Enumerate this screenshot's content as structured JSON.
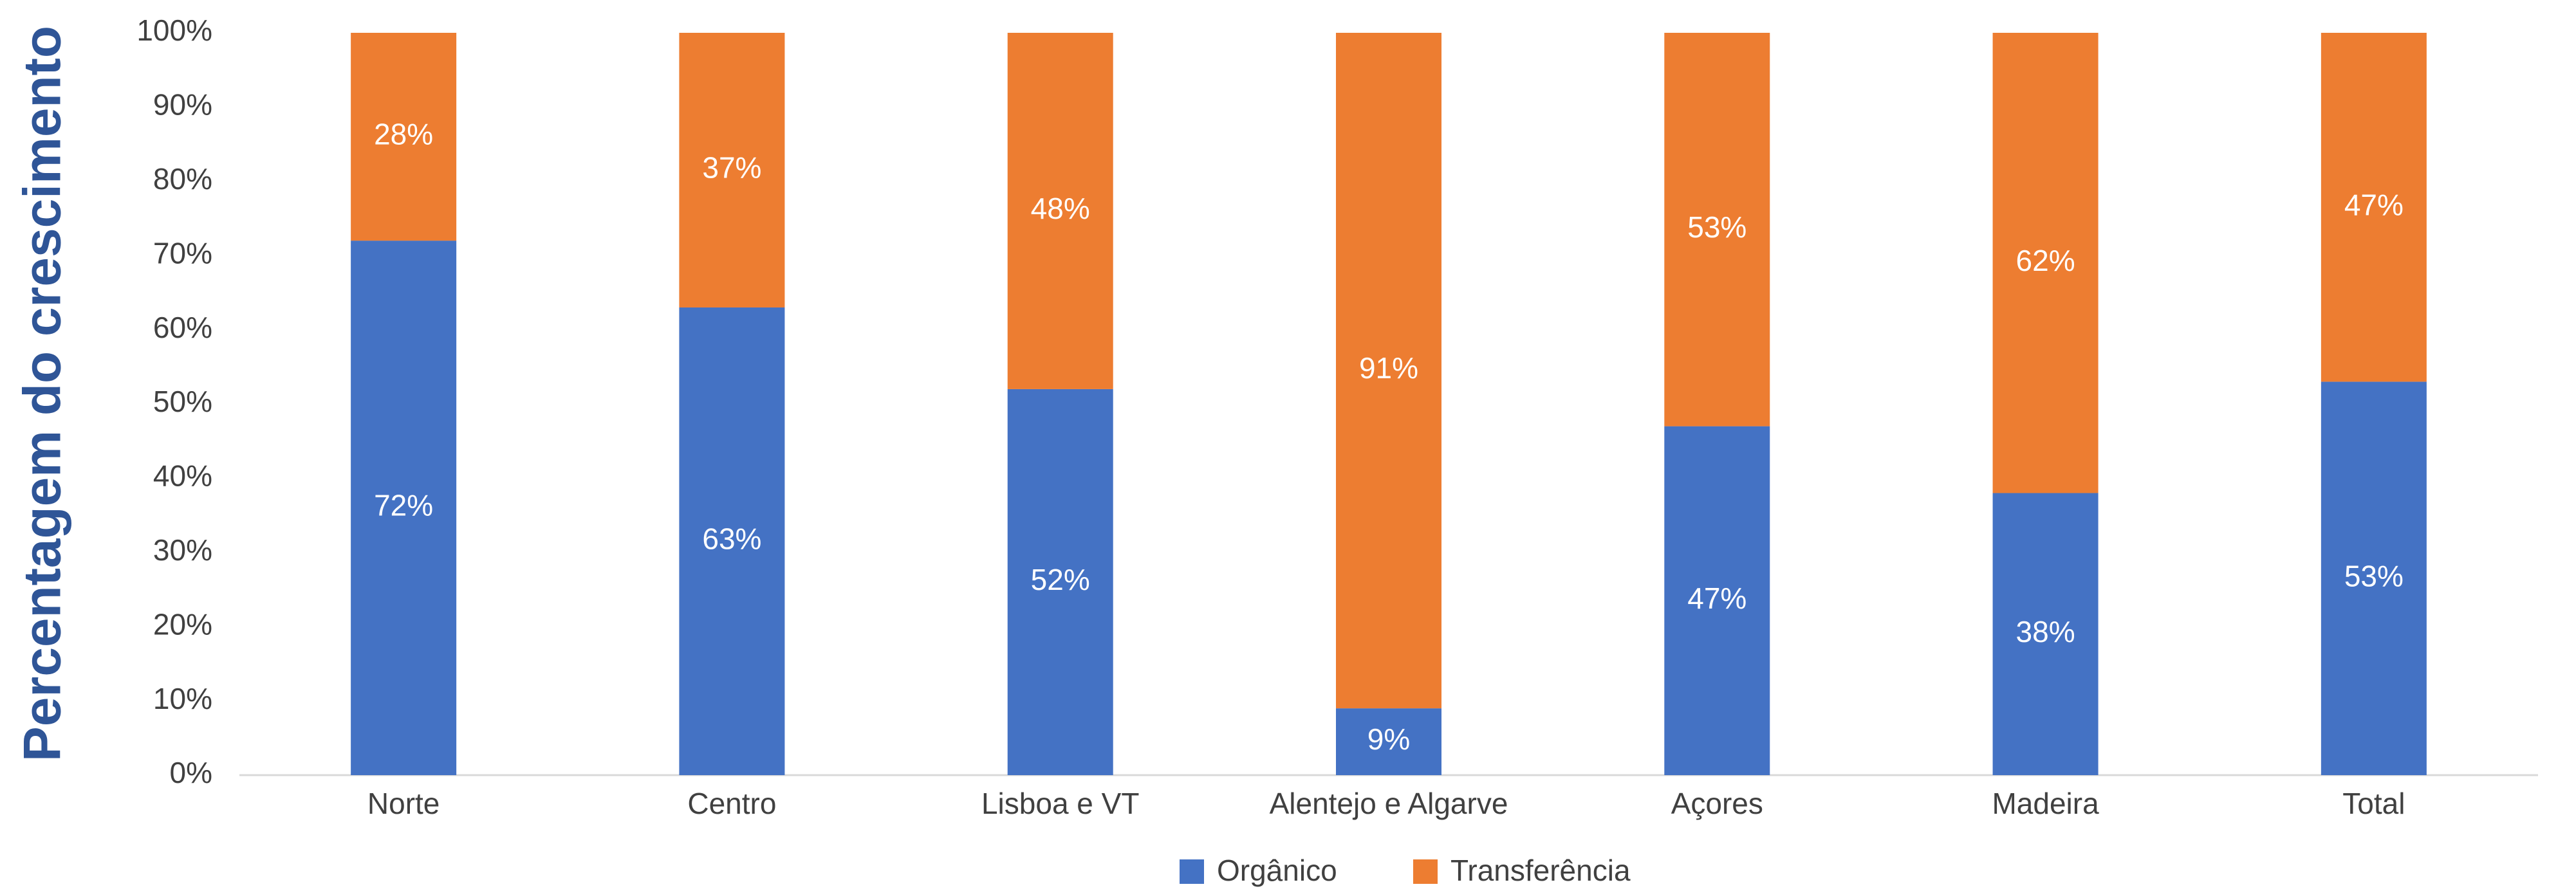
{
  "chart_data": {
    "type": "stacked_bar",
    "ylabel": "Percentagem do crescimento",
    "categories": [
      "Norte",
      "Centro",
      "Lisboa e VT",
      "Alentejo e Algarve",
      "Açores",
      "Madeira",
      "Total"
    ],
    "series": [
      {
        "name": "Orgânico",
        "color": "#4472c4",
        "values": [
          72,
          63,
          52,
          9,
          47,
          38,
          53
        ],
        "value_labels": [
          "72%",
          "63%",
          "52%",
          "9%",
          "47%",
          "38%",
          "53%"
        ]
      },
      {
        "name": "Transferência",
        "color": "#ed7d31",
        "values": [
          28,
          37,
          48,
          91,
          53,
          62,
          47
        ],
        "value_labels": [
          "28%",
          "37%",
          "48%",
          "91%",
          "53%",
          "62%",
          "47%"
        ]
      }
    ],
    "ylim": [
      0,
      100
    ],
    "yticks": [
      {
        "value": 0,
        "label": "0%"
      },
      {
        "value": 10,
        "label": "10%"
      },
      {
        "value": 20,
        "label": "20%"
      },
      {
        "value": 30,
        "label": "30%"
      },
      {
        "value": 40,
        "label": "40%"
      },
      {
        "value": 50,
        "label": "50%"
      },
      {
        "value": 60,
        "label": "60%"
      },
      {
        "value": 70,
        "label": "70%"
      },
      {
        "value": 80,
        "label": "80%"
      },
      {
        "value": 90,
        "label": "90%"
      },
      {
        "value": 100,
        "label": "100%"
      }
    ],
    "legend": "bottom"
  }
}
